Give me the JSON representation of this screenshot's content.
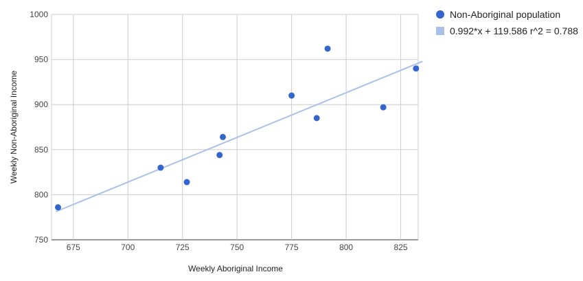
{
  "chart_data": {
    "type": "scatter",
    "title": "",
    "xlabel": "Weekly Aboriginal Income",
    "ylabel": "Weekly Non-Aboriginal Income",
    "xlim": [
      665,
      833
    ],
    "ylim": [
      750,
      1000
    ],
    "x_ticks": [
      675,
      700,
      725,
      750,
      775,
      800,
      825
    ],
    "y_ticks": [
      750,
      800,
      850,
      900,
      950,
      1000
    ],
    "grid": true,
    "legend_position": "right",
    "series": [
      {
        "name": "Non-Aboriginal population",
        "color": "#3366cc",
        "points": [
          {
            "x": 668,
            "y": 786
          },
          {
            "x": 715,
            "y": 830
          },
          {
            "x": 727,
            "y": 814
          },
          {
            "x": 742,
            "y": 844
          },
          {
            "x": 743.5,
            "y": 864
          },
          {
            "x": 775,
            "y": 910
          },
          {
            "x": 786.5,
            "y": 885
          },
          {
            "x": 791.5,
            "y": 962
          },
          {
            "x": 817,
            "y": 897
          },
          {
            "x": 832,
            "y": 940
          }
        ]
      }
    ],
    "trendline": {
      "name": "0.992*x + 119.586 r^2 = 0.788",
      "color": "#a9c0ea",
      "slope": 0.992,
      "intercept": 119.586
    }
  }
}
